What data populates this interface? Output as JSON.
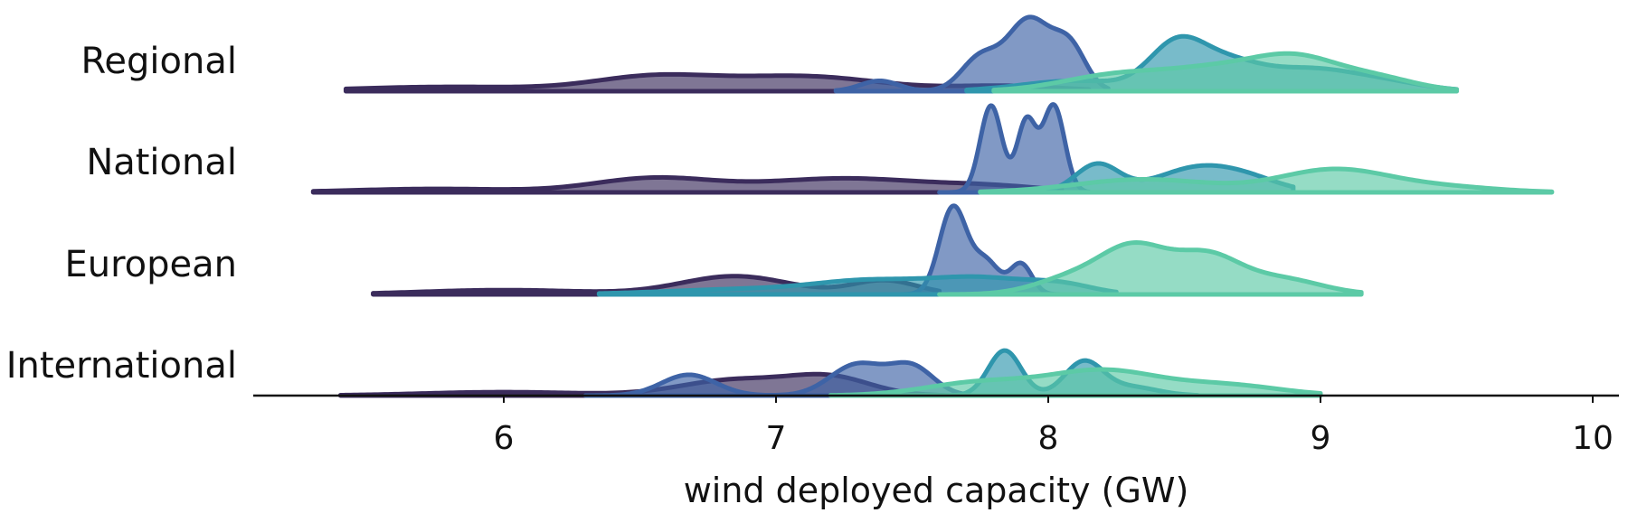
{
  "chart_data": {
    "type": "ridgeline",
    "title": "",
    "xlabel": "wind deployed capacity (GW)",
    "ylabel": "",
    "xlim": [
      5.1,
      10.1
    ],
    "xticks": [
      6,
      7,
      8,
      9,
      10
    ],
    "rows": [
      "Regional",
      "National",
      "European",
      "International"
    ],
    "series_colors": [
      "#3b2c5c",
      "#3e63a6",
      "#2f96ad",
      "#5ccaa6"
    ],
    "series": [
      {
        "row": "Regional",
        "densities": [
          {
            "color": "#3b2c5c",
            "range": [
              5.42,
              8.15
            ],
            "peaks": [
              [
                5.8,
                0.05,
                0.35
              ],
              [
                6.55,
                0.16,
                0.22
              ],
              [
                7.1,
                0.17,
                0.28
              ],
              [
                7.85,
                0.06,
                0.2
              ]
            ]
          },
          {
            "color": "#3e63a6",
            "range": [
              7.22,
              8.22
            ],
            "peaks": [
              [
                7.38,
                0.12,
                0.07
              ],
              [
                7.75,
                0.38,
                0.07
              ],
              [
                7.93,
                0.82,
                0.08
              ],
              [
                8.08,
                0.48,
                0.06
              ]
            ]
          },
          {
            "color": "#2f96ad",
            "range": [
              7.7,
              9.5
            ],
            "peaks": [
              [
                8.1,
                0.12,
                0.2
              ],
              [
                8.47,
                0.5,
                0.1
              ],
              [
                8.65,
                0.28,
                0.12
              ],
              [
                8.95,
                0.25,
                0.18
              ],
              [
                9.25,
                0.08,
                0.15
              ]
            ]
          },
          {
            "color": "#5ccaa6",
            "range": [
              7.8,
              9.5
            ],
            "peaks": [
              [
                8.25,
                0.18,
                0.2
              ],
              [
                8.65,
                0.25,
                0.2
              ],
              [
                8.92,
                0.3,
                0.15
              ],
              [
                9.2,
                0.15,
                0.15
              ]
            ]
          }
        ]
      },
      {
        "row": "National",
        "densities": [
          {
            "color": "#3b2c5c",
            "range": [
              5.3,
              8.05
            ],
            "peaks": [
              [
                5.75,
                0.04,
                0.3
              ],
              [
                6.55,
                0.16,
                0.22
              ],
              [
                7.25,
                0.16,
                0.3
              ],
              [
                7.8,
                0.06,
                0.2
              ]
            ]
          },
          {
            "color": "#3e63a6",
            "range": [
              7.6,
              8.15
            ],
            "peaks": [
              [
                7.79,
                1.0,
                0.04
              ],
              [
                7.92,
                0.82,
                0.035
              ],
              [
                8.02,
                1.0,
                0.04
              ]
            ]
          },
          {
            "color": "#2f96ad",
            "range": [
              7.75,
              8.9
            ],
            "peaks": [
              [
                8.18,
                0.32,
                0.08
              ],
              [
                8.55,
                0.28,
                0.15
              ],
              [
                8.75,
                0.1,
                0.12
              ]
            ]
          },
          {
            "color": "#5ccaa6",
            "range": [
              7.75,
              9.85
            ],
            "peaks": [
              [
                8.35,
                0.15,
                0.25
              ],
              [
                9.05,
                0.26,
                0.2
              ],
              [
                9.45,
                0.06,
                0.2
              ]
            ]
          }
        ]
      },
      {
        "row": "European",
        "densities": [
          {
            "color": "#3b2c5c",
            "range": [
              5.52,
              7.6
            ],
            "peaks": [
              [
                6.0,
                0.05,
                0.3
              ],
              [
                6.85,
                0.21,
                0.2
              ],
              [
                7.4,
                0.16,
                0.12
              ]
            ]
          },
          {
            "color": "#3e63a6",
            "range": [
              7.45,
              8.05
            ],
            "peaks": [
              [
                7.65,
                1.0,
                0.05
              ],
              [
                7.77,
                0.38,
                0.05
              ],
              [
                7.9,
                0.35,
                0.04
              ]
            ]
          },
          {
            "color": "#2f96ad",
            "range": [
              6.35,
              8.25
            ],
            "peaks": [
              [
                6.9,
                0.06,
                0.3
              ],
              [
                7.35,
                0.14,
                0.2
              ],
              [
                7.75,
                0.18,
                0.18
              ],
              [
                8.05,
                0.1,
                0.12
              ]
            ]
          },
          {
            "color": "#5ccaa6",
            "range": [
              7.6,
              9.15
            ],
            "peaks": [
              [
                8.1,
                0.2,
                0.14
              ],
              [
                8.32,
                0.5,
                0.12
              ],
              [
                8.58,
                0.42,
                0.12
              ],
              [
                8.85,
                0.18,
                0.15
              ]
            ]
          }
        ]
      },
      {
        "row": "International",
        "densities": [
          {
            "color": "#3b2c5c",
            "range": [
              5.4,
              7.65
            ],
            "peaks": [
              [
                6.0,
                0.04,
                0.3
              ],
              [
                6.85,
                0.18,
                0.2
              ],
              [
                7.2,
                0.2,
                0.15
              ]
            ]
          },
          {
            "color": "#3e63a6",
            "range": [
              6.3,
              7.7
            ],
            "peaks": [
              [
                6.68,
                0.24,
                0.1
              ],
              [
                7.3,
                0.36,
                0.1
              ],
              [
                7.5,
                0.32,
                0.08
              ]
            ]
          },
          {
            "color": "#2f96ad",
            "range": [
              7.5,
              8.55
            ],
            "peaks": [
              [
                7.84,
                0.52,
                0.06
              ],
              [
                8.13,
                0.38,
                0.07
              ],
              [
                8.3,
                0.1,
                0.1
              ]
            ]
          },
          {
            "color": "#5ccaa6",
            "range": [
              7.2,
              9.0
            ],
            "peaks": [
              [
                7.75,
                0.15,
                0.2
              ],
              [
                8.2,
                0.28,
                0.2
              ],
              [
                8.65,
                0.12,
                0.2
              ]
            ]
          }
        ]
      }
    ]
  }
}
